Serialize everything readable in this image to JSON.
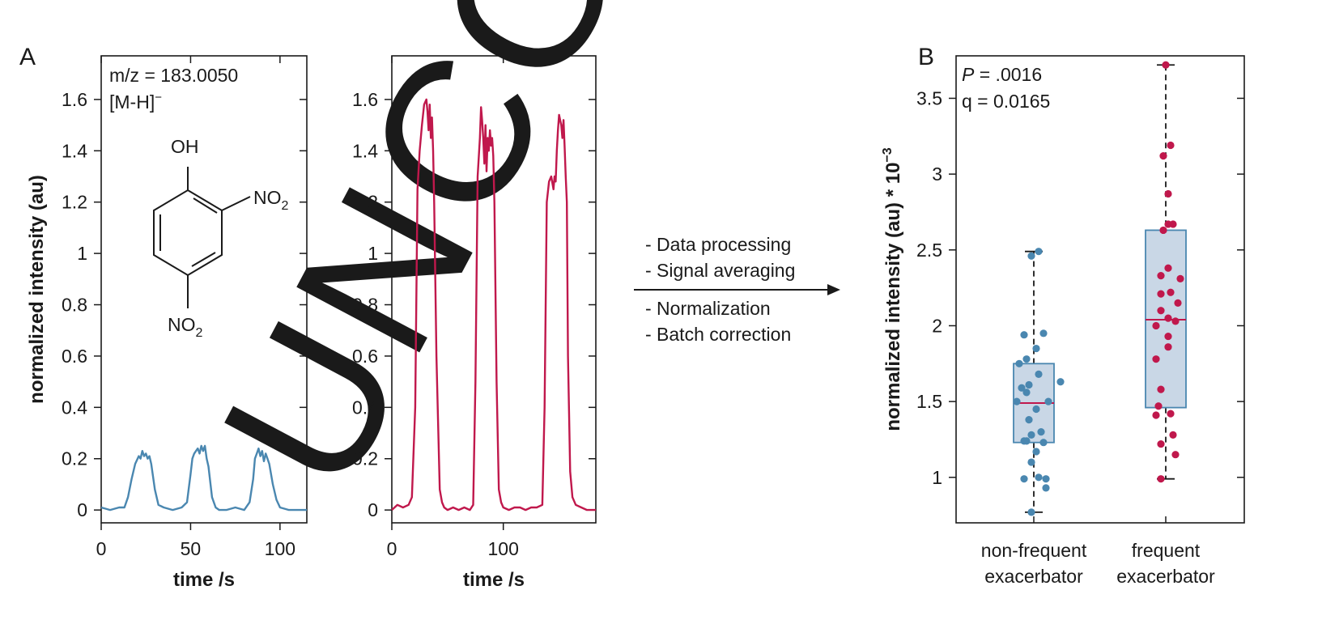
{
  "watermark": "UNCORR",
  "panels": {
    "a": "A",
    "b": "B"
  },
  "annotation": {
    "mz": "m/z = 183.0050",
    "ion": "[M-H]",
    "ion_sup": "−",
    "substituents": {
      "oh": "OH",
      "no2": "NO",
      "sub2": "2"
    }
  },
  "workflow": [
    "- Data processing",
    "- Signal averaging",
    "- Normalization",
    "- Batch correction"
  ],
  "stats": {
    "p_label": "P",
    "p_value": " = .0016",
    "q_text": "q = 0.0165"
  },
  "colors": {
    "blue": "#4a87b0",
    "crimson": "#c0184c",
    "box_fill": "#c3d3e3",
    "box_edge": "#4a87b0"
  },
  "chart_data": [
    {
      "type": "line",
      "xlabel": "time /s",
      "ylabel": "normalized intensity (au)",
      "xlim": [
        0,
        115
      ],
      "ylim": [
        -0.05,
        1.77
      ],
      "x_ticks": [
        0,
        50,
        100
      ],
      "y_ticks": [
        0,
        0.2,
        0.4,
        0.6,
        0.8,
        1,
        1.2,
        1.4,
        1.6
      ],
      "y_tick_labels": [
        "0",
        "0.2",
        "0.4",
        "0.6",
        "0.8",
        "1",
        "1.2",
        "1.4",
        "1.6"
      ],
      "series": [
        {
          "color": "#4a87b0",
          "x": [
            0,
            5,
            10,
            13,
            15,
            17,
            19,
            21,
            22,
            23,
            24,
            25,
            26,
            27,
            28,
            30,
            32,
            35,
            40,
            45,
            48,
            50,
            51,
            52,
            53,
            54,
            55,
            56,
            57,
            58,
            59,
            60,
            62,
            64,
            66,
            70,
            75,
            80,
            83,
            85,
            86,
            87,
            88,
            89,
            90,
            91,
            92,
            93,
            94,
            96,
            98,
            100,
            105,
            110,
            115
          ],
          "y": [
            0.01,
            0.0,
            0.01,
            0.01,
            0.05,
            0.12,
            0.18,
            0.21,
            0.2,
            0.23,
            0.21,
            0.22,
            0.2,
            0.21,
            0.18,
            0.08,
            0.02,
            0.01,
            0.0,
            0.01,
            0.03,
            0.14,
            0.2,
            0.22,
            0.23,
            0.24,
            0.22,
            0.25,
            0.23,
            0.25,
            0.2,
            0.17,
            0.05,
            0.01,
            0.0,
            0.0,
            0.01,
            0.0,
            0.03,
            0.12,
            0.2,
            0.22,
            0.24,
            0.21,
            0.23,
            0.19,
            0.22,
            0.2,
            0.18,
            0.1,
            0.04,
            0.01,
            0.0,
            0.0,
            0.0
          ]
        }
      ]
    },
    {
      "type": "line",
      "xlabel": "time /s",
      "ylabel": "",
      "xlim": [
        0,
        183
      ],
      "ylim": [
        -0.05,
        1.77
      ],
      "x_ticks": [
        0,
        100
      ],
      "y_ticks": [
        0,
        0.2,
        0.4,
        0.6,
        0.8,
        1,
        1.2,
        1.4,
        1.6
      ],
      "y_tick_labels": [
        "0",
        "0.2",
        "0.4",
        "0.6",
        "0.8",
        "1",
        "1.2",
        "1.4",
        "1.6"
      ],
      "series": [
        {
          "color": "#c0184c",
          "x": [
            0,
            5,
            10,
            15,
            18,
            21,
            23,
            25,
            27,
            29,
            31,
            32,
            33,
            34,
            35,
            36,
            37,
            38,
            40,
            43,
            45,
            47,
            50,
            55,
            60,
            65,
            70,
            73,
            75,
            77,
            79,
            80,
            81,
            82,
            83,
            84,
            85,
            86,
            87,
            88,
            89,
            90,
            91,
            92,
            94,
            96,
            98,
            100,
            105,
            110,
            115,
            120,
            125,
            130,
            135,
            137,
            139,
            141,
            143,
            145,
            146,
            147,
            148,
            149,
            150,
            151,
            152,
            153,
            154,
            155,
            156,
            157,
            158,
            160,
            162,
            165,
            170,
            175,
            180,
            183
          ],
          "y": [
            0.0,
            0.02,
            0.01,
            0.02,
            0.05,
            0.4,
            1.25,
            1.4,
            1.5,
            1.58,
            1.6,
            1.55,
            1.48,
            1.58,
            1.45,
            1.53,
            1.4,
            1.2,
            0.6,
            0.08,
            0.03,
            0.01,
            0.0,
            0.01,
            0.0,
            0.01,
            0.0,
            0.02,
            0.5,
            1.3,
            1.45,
            1.57,
            1.52,
            1.45,
            1.35,
            1.5,
            1.32,
            1.45,
            1.4,
            1.48,
            1.42,
            1.45,
            1.38,
            1.2,
            0.5,
            0.08,
            0.03,
            0.01,
            0.0,
            0.01,
            0.01,
            0.0,
            0.01,
            0.01,
            0.02,
            0.4,
            1.2,
            1.28,
            1.3,
            1.25,
            1.3,
            1.28,
            1.4,
            1.48,
            1.54,
            1.52,
            1.5,
            1.45,
            1.52,
            1.42,
            1.3,
            1.2,
            0.6,
            0.15,
            0.05,
            0.02,
            0.01,
            0.0,
            0.0,
            0.0
          ]
        }
      ]
    },
    {
      "type": "box",
      "xlabel": "",
      "ylabel": "normalized intensity (au) * 10",
      "ylabel_sup": "−3",
      "categories": [
        "non-frequent\nexacerbator",
        "frequent\nexacerbator"
      ],
      "category_lines": [
        [
          "non-frequent",
          "exacerbator"
        ],
        [
          "frequent",
          "exacerbator"
        ]
      ],
      "ylim": [
        0.7,
        3.78
      ],
      "y_ticks": [
        1,
        1.5,
        2,
        2.5,
        3,
        3.5
      ],
      "y_tick_labels": [
        "1",
        "1.5",
        "2",
        "2.5",
        "3",
        "3.5"
      ],
      "boxes": [
        {
          "color": "#4a87b0",
          "min": 0.77,
          "q1": 1.23,
          "median": 1.49,
          "q3": 1.75,
          "max": 2.49,
          "points": [
            0.77,
            0.93,
            0.99,
            0.99,
            1.0,
            1.1,
            1.17,
            1.23,
            1.24,
            1.24,
            1.28,
            1.3,
            1.38,
            1.45,
            1.5,
            1.5,
            1.56,
            1.59,
            1.61,
            1.63,
            1.68,
            1.75,
            1.78,
            1.85,
            1.94,
            1.95,
            2.46,
            2.49
          ],
          "jitter": [
            -0.05,
            0.25,
            -0.2,
            0.25,
            0.1,
            -0.05,
            0.05,
            0.2,
            -0.2,
            -0.15,
            -0.05,
            0.15,
            -0.1,
            0.05,
            -0.35,
            0.3,
            -0.15,
            -0.25,
            -0.1,
            0.55,
            0.1,
            -0.3,
            -0.15,
            0.05,
            -0.2,
            0.2,
            -0.05,
            0.1
          ]
        },
        {
          "color": "#c0184c",
          "min": 0.99,
          "q1": 1.46,
          "median": 2.04,
          "q3": 2.63,
          "max": 3.72,
          "points": [
            0.99,
            1.15,
            1.22,
            1.28,
            1.41,
            1.42,
            1.47,
            1.58,
            1.78,
            1.86,
            1.93,
            2.0,
            2.03,
            2.05,
            2.1,
            2.15,
            2.21,
            2.22,
            2.31,
            2.33,
            2.38,
            2.63,
            2.67,
            2.67,
            2.87,
            3.12,
            3.19,
            3.72
          ],
          "jitter": [
            -0.1,
            0.2,
            -0.1,
            0.15,
            -0.2,
            0.1,
            -0.15,
            -0.1,
            -0.2,
            0.05,
            0.05,
            -0.2,
            0.2,
            0.05,
            -0.1,
            0.25,
            -0.1,
            0.1,
            0.3,
            -0.1,
            0.05,
            -0.05,
            0.15,
            0.05,
            0.05,
            -0.05,
            0.1,
            0.0
          ]
        }
      ]
    }
  ]
}
